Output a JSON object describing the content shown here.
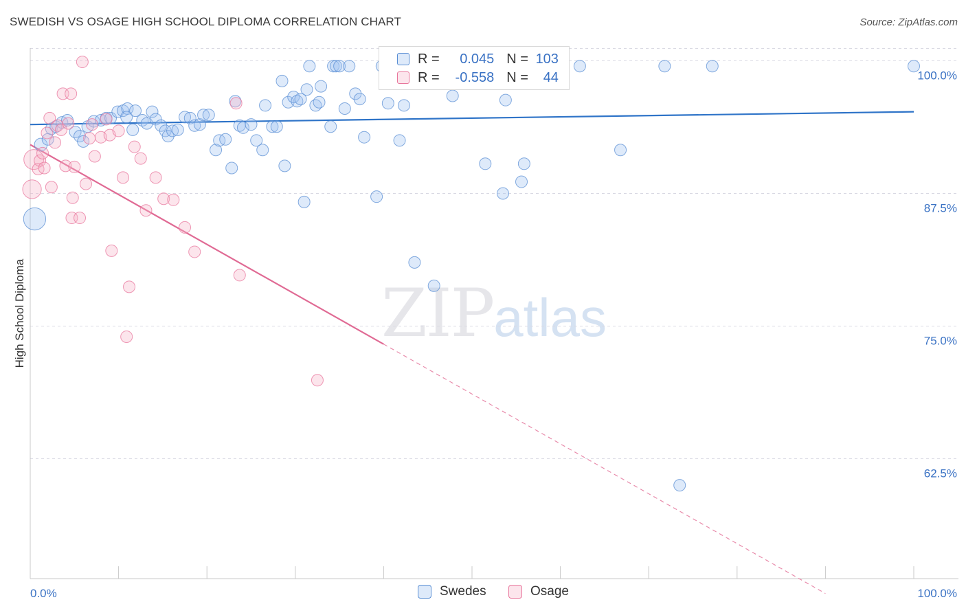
{
  "title": "SWEDISH VS OSAGE HIGH SCHOOL DIPLOMA CORRELATION CHART",
  "source": "Source: ZipAtlas.com",
  "watermark": {
    "zip": "ZIP",
    "atlas": "atlas"
  },
  "colors": {
    "swedes": "#5b8fd4",
    "swedes_fill": "rgba(160,195,240,0.35)",
    "osage": "#e8769c",
    "osage_fill": "rgba(245,180,200,0.35)",
    "axis_label": "#3a72c4",
    "grid": "#d9d9e3"
  },
  "legend": {
    "r_label": "R =",
    "n_label": "N =",
    "swedes": {
      "r": "0.045",
      "n": "103"
    },
    "osage": {
      "r": "-0.558",
      "n": "44"
    }
  },
  "bottom_legend": {
    "swedes": "Swedes",
    "osage": "Osage"
  },
  "chart_data": {
    "type": "scatter",
    "title": "SWEDISH VS OSAGE HIGH SCHOOL DIPLOMA CORRELATION CHART",
    "xlabel": "",
    "ylabel": "High School Diploma",
    "xlim": [
      0,
      100
    ],
    "ylim": [
      51.2,
      101.2
    ],
    "x_tick_labels": [
      "0.0%",
      "100.0%"
    ],
    "y_ticks": [
      62.5,
      75.0,
      87.5,
      100.0
    ],
    "y_tick_labels": [
      "62.5%",
      "75.0%",
      "87.5%",
      "100.0%"
    ],
    "series": [
      {
        "name": "Swedes",
        "trend": {
          "x": [
            0,
            100
          ],
          "y": [
            94.0,
            95.2
          ],
          "style": "solid"
        },
        "points": [
          [
            0.5,
            85.1,
            1.9
          ],
          [
            1.2,
            92.1,
            1.1
          ],
          [
            2.0,
            92.6,
            1.0
          ],
          [
            2.4,
            93.6,
            1.0
          ],
          [
            2.9,
            93.8,
            1.0
          ],
          [
            3.6,
            94.2,
            1.0
          ],
          [
            4.2,
            94.4,
            1.0
          ],
          [
            5.1,
            93.3,
            1.0
          ],
          [
            5.6,
            92.9,
            1.0
          ],
          [
            6.0,
            92.4,
            1.0
          ],
          [
            6.5,
            93.8,
            1.0
          ],
          [
            7.2,
            94.3,
            1.0
          ],
          [
            8.0,
            94.4,
            1.0
          ],
          [
            8.6,
            94.6,
            1.0
          ],
          [
            9.1,
            94.6,
            1.0
          ],
          [
            9.9,
            95.2,
            1.0
          ],
          [
            10.5,
            95.3,
            1.0
          ],
          [
            11.0,
            95.5,
            1.0
          ],
          [
            10.9,
            94.7,
            1.0
          ],
          [
            11.6,
            93.5,
            1.0
          ],
          [
            11.9,
            95.3,
            1.0
          ],
          [
            12.7,
            94.4,
            1.0
          ],
          [
            13.2,
            94.1,
            1.0
          ],
          [
            13.8,
            95.2,
            1.0
          ],
          [
            14.2,
            94.5,
            1.0
          ],
          [
            14.8,
            93.9,
            1.0
          ],
          [
            15.3,
            93.4,
            1.0
          ],
          [
            15.6,
            92.9,
            1.0
          ],
          [
            16.1,
            93.4,
            1.0
          ],
          [
            16.7,
            93.5,
            1.0
          ],
          [
            17.5,
            94.7,
            1.0
          ],
          [
            18.1,
            94.6,
            1.0
          ],
          [
            18.6,
            93.9,
            1.0
          ],
          [
            19.2,
            94.0,
            1.0
          ],
          [
            19.6,
            94.9,
            1.0
          ],
          [
            20.2,
            94.9,
            1.0
          ],
          [
            21.0,
            91.6,
            1.0
          ],
          [
            21.4,
            92.5,
            1.0
          ],
          [
            22.1,
            92.6,
            1.0
          ],
          [
            22.8,
            89.9,
            1.0
          ],
          [
            23.2,
            96.2,
            1.0
          ],
          [
            23.7,
            93.9,
            1.0
          ],
          [
            24.1,
            93.7,
            1.0
          ],
          [
            25.0,
            94.0,
            1.0
          ],
          [
            25.6,
            92.5,
            1.0
          ],
          [
            26.3,
            91.6,
            1.0
          ],
          [
            26.6,
            95.8,
            1.0
          ],
          [
            27.4,
            93.8,
            1.0
          ],
          [
            27.9,
            93.8,
            1.0
          ],
          [
            28.5,
            98.1,
            1.0
          ],
          [
            28.8,
            90.1,
            1.0
          ],
          [
            29.2,
            96.1,
            1.0
          ],
          [
            29.8,
            96.6,
            1.0
          ],
          [
            30.2,
            96.2,
            1.0
          ],
          [
            30.6,
            96.4,
            1.0
          ],
          [
            31.0,
            86.7,
            1.0
          ],
          [
            31.3,
            97.3,
            1.0
          ],
          [
            31.6,
            99.5,
            1.0
          ],
          [
            32.3,
            95.8,
            1.0
          ],
          [
            32.7,
            96.1,
            1.0
          ],
          [
            32.9,
            97.6,
            1.0
          ],
          [
            34.0,
            93.8,
            1.0
          ],
          [
            34.3,
            99.5,
            1.0
          ],
          [
            34.6,
            99.5,
            1.0
          ],
          [
            35.0,
            99.5,
            1.0
          ],
          [
            35.6,
            95.5,
            1.0
          ],
          [
            36.1,
            99.5,
            1.0
          ],
          [
            36.8,
            96.9,
            1.0
          ],
          [
            37.3,
            96.4,
            1.0
          ],
          [
            37.8,
            92.8,
            1.0
          ],
          [
            39.2,
            87.2,
            1.0
          ],
          [
            39.8,
            99.5,
            1.0
          ],
          [
            40.2,
            99.5,
            1.0
          ],
          [
            40.5,
            96.0,
            1.0
          ],
          [
            40.9,
            99.5,
            1.0
          ],
          [
            41.8,
            92.5,
            1.0
          ],
          [
            42.3,
            95.8,
            1.0
          ],
          [
            42.8,
            99.5,
            1.0
          ],
          [
            43.5,
            81.0,
            1.0
          ],
          [
            44.0,
            99.5,
            1.0
          ],
          [
            44.5,
            99.5,
            1.0
          ],
          [
            45.7,
            78.8,
            1.0
          ],
          [
            46.2,
            99.5,
            1.0
          ],
          [
            46.8,
            99.5,
            1.0
          ],
          [
            47.8,
            96.7,
            1.0
          ],
          [
            48.7,
            99.5,
            1.0
          ],
          [
            49.0,
            99.5,
            1.0
          ],
          [
            50.0,
            99.5,
            1.0
          ],
          [
            50.6,
            99.5,
            1.0
          ],
          [
            51.5,
            90.3,
            1.0
          ],
          [
            52.6,
            99.5,
            1.0
          ],
          [
            53.5,
            87.5,
            1.0
          ],
          [
            53.8,
            96.3,
            1.0
          ],
          [
            55.6,
            88.6,
            1.0
          ],
          [
            55.9,
            90.3,
            1.0
          ],
          [
            59.3,
            99.5,
            1.0
          ],
          [
            62.2,
            99.5,
            1.0
          ],
          [
            66.8,
            91.6,
            1.0
          ],
          [
            71.8,
            99.5,
            1.0
          ],
          [
            73.5,
            60.0,
            1.0
          ],
          [
            77.2,
            99.5,
            1.0
          ],
          [
            100.0,
            99.5,
            1.0
          ]
        ]
      },
      {
        "name": "Osage",
        "trend": {
          "x": [
            0,
            40,
            90
          ],
          "y": [
            92.1,
            73.3,
            49.8
          ],
          "style": "solid-then-dashed"
        },
        "points": [
          [
            0.2,
            87.9,
            1.6
          ],
          [
            0.4,
            90.7,
            1.7
          ],
          [
            0.9,
            89.8,
            1.0
          ],
          [
            1.1,
            90.6,
            1.0
          ],
          [
            1.4,
            91.3,
            1.0
          ],
          [
            1.6,
            89.9,
            1.0
          ],
          [
            1.9,
            93.2,
            1.0
          ],
          [
            2.2,
            94.6,
            1.0
          ],
          [
            2.4,
            88.1,
            1.0
          ],
          [
            2.8,
            92.3,
            1.0
          ],
          [
            3.1,
            93.9,
            1.0
          ],
          [
            3.5,
            93.5,
            1.0
          ],
          [
            3.7,
            96.9,
            1.0
          ],
          [
            4.0,
            90.1,
            1.0
          ],
          [
            4.3,
            94.1,
            1.0
          ],
          [
            4.6,
            96.9,
            1.0
          ],
          [
            4.7,
            85.2,
            1.0
          ],
          [
            4.8,
            87.1,
            1.0
          ],
          [
            5.0,
            90.0,
            1.0
          ],
          [
            5.6,
            85.2,
            1.0
          ],
          [
            5.9,
            99.9,
            1.0
          ],
          [
            6.3,
            88.4,
            1.0
          ],
          [
            6.7,
            92.7,
            1.0
          ],
          [
            7.0,
            94.0,
            1.0
          ],
          [
            7.3,
            91.0,
            1.0
          ],
          [
            8.0,
            92.8,
            1.0
          ],
          [
            8.6,
            94.5,
            1.0
          ],
          [
            9.0,
            93.0,
            1.0
          ],
          [
            9.2,
            82.1,
            1.0
          ],
          [
            10.0,
            93.4,
            1.0
          ],
          [
            10.5,
            89.0,
            1.0
          ],
          [
            10.9,
            74.0,
            1.0
          ],
          [
            11.2,
            78.7,
            1.0
          ],
          [
            11.8,
            91.9,
            1.0
          ],
          [
            12.5,
            90.8,
            1.0
          ],
          [
            13.1,
            85.9,
            1.0
          ],
          [
            14.2,
            89.0,
            1.0
          ],
          [
            15.1,
            87.0,
            1.0
          ],
          [
            16.2,
            86.9,
            1.0
          ],
          [
            17.5,
            84.3,
            1.0
          ],
          [
            18.6,
            82.0,
            1.0
          ],
          [
            23.3,
            96.0,
            1.0
          ],
          [
            23.7,
            79.8,
            1.0
          ],
          [
            32.5,
            69.9,
            1.0
          ]
        ]
      }
    ]
  }
}
